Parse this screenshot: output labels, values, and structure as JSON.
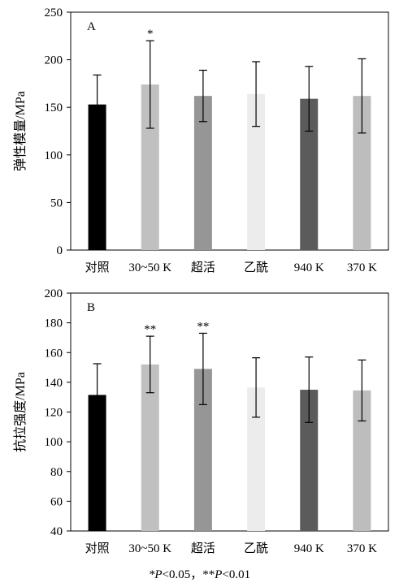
{
  "chart_data": [
    {
      "panel": "A",
      "type": "bar",
      "ylabel": "弹性模量/MPa",
      "ylim": [
        0,
        250
      ],
      "yticks": [
        0,
        50,
        100,
        150,
        200,
        250
      ],
      "categories": [
        "对照",
        "30~50 K",
        "超活",
        "乙酰",
        "940 K",
        "370 K"
      ],
      "values": [
        153,
        174,
        162,
        164,
        159,
        162
      ],
      "error": [
        31,
        46,
        27,
        34,
        34,
        39
      ],
      "significance": [
        "",
        "*",
        "",
        "",
        "",
        ""
      ],
      "colors": [
        "#000000",
        "#c0c0c0",
        "#969696",
        "#ececec",
        "#5b5b5b",
        "#bdbdbd"
      ],
      "grid": false,
      "legend": false
    },
    {
      "panel": "B",
      "type": "bar",
      "ylabel": "抗拉强度/MPa",
      "ylim": [
        40,
        200
      ],
      "yticks": [
        40,
        60,
        80,
        100,
        120,
        140,
        160,
        180,
        200
      ],
      "categories": [
        "对照",
        "30~50 K",
        "超活",
        "乙酰",
        "940 K",
        "370 K"
      ],
      "values": [
        131.5,
        152,
        149,
        136.5,
        135,
        134.5
      ],
      "error": [
        21,
        19,
        24,
        20,
        22,
        20.5
      ],
      "significance": [
        "",
        "**",
        "**",
        "",
        "",
        ""
      ],
      "colors": [
        "#000000",
        "#c0c0c0",
        "#969696",
        "#ececec",
        "#5b5b5b",
        "#bdbdbd"
      ],
      "grid": false,
      "legend": false
    }
  ],
  "footnote": "*P<0.05，**P<0.01"
}
